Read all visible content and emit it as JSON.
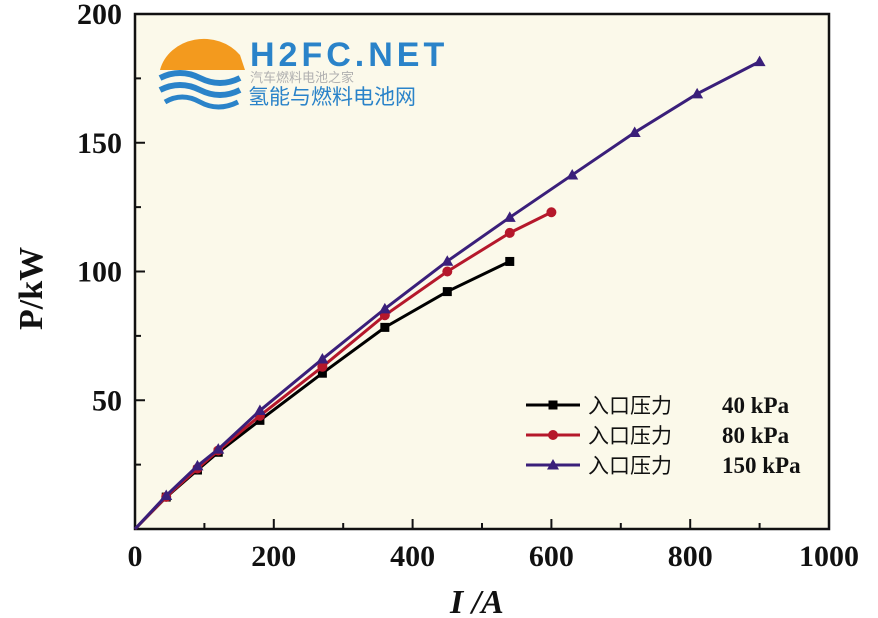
{
  "chart_data": {
    "type": "line",
    "title": "",
    "xlabel": "I /A",
    "ylabel": "P/kW",
    "xlim": [
      0,
      1000
    ],
    "ylim": [
      0,
      200
    ],
    "xticks": [
      "0",
      "200",
      "400",
      "600",
      "800",
      "1000"
    ],
    "xtick_values": [
      0,
      200,
      400,
      600,
      800,
      1000
    ],
    "yticks": [
      "50",
      "100",
      "150",
      "200"
    ],
    "ytick_values": [
      50,
      100,
      150,
      200
    ],
    "grid": false,
    "legend_position": "bottom-right",
    "series": [
      {
        "name": "入口压力40 kPa",
        "name_cn": "入口压力",
        "name_val": "40 kPa",
        "color": "#000000",
        "marker": "square",
        "x": [
          0,
          45,
          90,
          120,
          180,
          270,
          360,
          450,
          540
        ],
        "y": [
          0,
          12.4,
          22.9,
          29.8,
          42.2,
          60.5,
          78.3,
          92.2,
          103.9
        ]
      },
      {
        "name": "入口压力80 kPa",
        "name_cn": "入口压力",
        "name_val": "80 kPa",
        "color": "#b5182b",
        "marker": "circle",
        "x": [
          0,
          45,
          90,
          120,
          180,
          270,
          360,
          450,
          540,
          600
        ],
        "y": [
          0,
          12.5,
          23.5,
          30.5,
          44,
          63,
          83,
          100,
          115,
          123
        ]
      },
      {
        "name": "入口压力150 kPa",
        "name_cn": "入口压力",
        "name_val": "150 kPa",
        "color": "#3a1f7a",
        "marker": "triangle",
        "x": [
          0,
          45,
          90,
          120,
          180,
          270,
          360,
          450,
          540,
          630,
          720,
          810,
          900
        ],
        "y": [
          0,
          13,
          24.5,
          31,
          46,
          66,
          85.5,
          104,
          121,
          137.5,
          154,
          169,
          181.5
        ]
      }
    ]
  },
  "colors": {
    "plot_bg": "#fbf9ea"
  },
  "watermark": {
    "brand": "H2FC.NET",
    "subtitle": "汽车燃料电池之家",
    "name": "氢能与燃料电池网"
  }
}
